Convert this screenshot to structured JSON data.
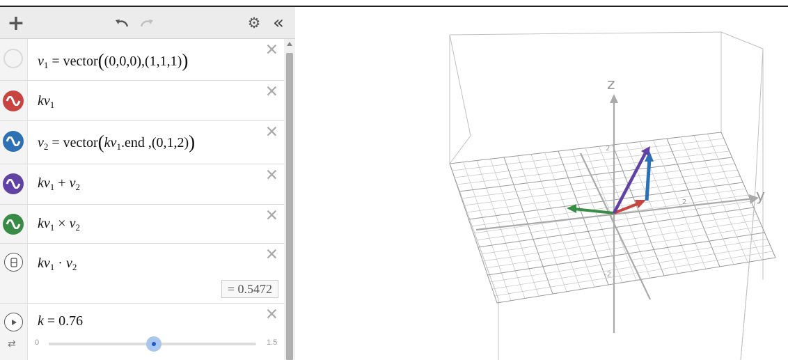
{
  "toolbar": {
    "add_icon": "plus-icon",
    "undo_icon": "undo-icon",
    "redo_icon": "redo-icon",
    "settings_icon": "gear-icon",
    "collapse_icon": "double-chevron-left-icon",
    "add_label": "+",
    "collapse_label": "«"
  },
  "expressions": [
    {
      "id": 1,
      "color": "none",
      "icon": "hollow-circle-icon",
      "text": "v1 = vector((0,0,0),(1,1,1))"
    },
    {
      "id": 2,
      "color": "#c74440",
      "icon": "wave-icon",
      "text": "kv1"
    },
    {
      "id": 3,
      "color": "#2d70b3",
      "icon": "wave-icon",
      "text": "v2 = vector(kv1.end ,(0,1,2))"
    },
    {
      "id": 4,
      "color": "#6042a6",
      "icon": "wave-icon",
      "text": "kv1 + v2"
    },
    {
      "id": 5,
      "color": "#388c46",
      "icon": "wave-icon",
      "text": "kv1 × v2"
    },
    {
      "id": 6,
      "color": "none",
      "icon": "numeric-icon",
      "text": "kv1 · v2",
      "result": "= 0.5472"
    },
    {
      "id": 7,
      "color": "none",
      "icon": "play-icon",
      "text": "k = 0.76",
      "slider": {
        "value": 0.76,
        "min": "0",
        "max": "1.5",
        "min_value": 0,
        "max_value": 1.5
      }
    }
  ],
  "parts": {
    "v": "v",
    "k": "k",
    "sub1": "1",
    "sub2": "2",
    "eq": " = ",
    "vector": "vector",
    "open": "(",
    "close": ")",
    "p000": "(0,0,0)",
    "comma": ",",
    "p111": "(1,1,1)",
    "p012": "(0,1,2)",
    "end": ".end ,",
    "plus": " + ",
    "cross": " × ",
    "dot": " · ",
    "k_value": " = 0.76"
  },
  "graph": {
    "axis_labels": {
      "z": "z",
      "y": "y"
    },
    "tick_labels": {
      "z_pos": "2",
      "z_neg": "-2",
      "y_pos": "2"
    },
    "vectors": [
      {
        "name": "kv1",
        "color": "#c74440"
      },
      {
        "name": "v2",
        "color": "#2d70b3"
      },
      {
        "name": "kv1+v2",
        "color": "#6042a6"
      },
      {
        "name": "kv1xv2",
        "color": "#388c46"
      }
    ]
  }
}
